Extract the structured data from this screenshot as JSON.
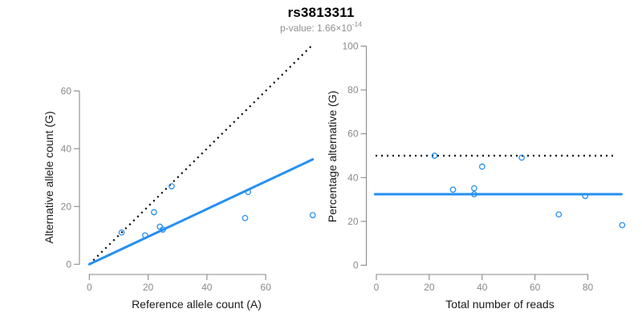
{
  "header": {
    "title": "rs3813311",
    "subtitle_prefix": "p-value: 1.66×10",
    "subtitle_exponent": "-14"
  },
  "colors": {
    "accent_blue": "#2590f2",
    "line_black": "#000000",
    "axis_gray": "#8a8a8a",
    "text_black": "#1a1a1a",
    "subtitle_gray": "#8f8f8f",
    "background": "#ffffff"
  },
  "chart_data": [
    {
      "type": "scatter",
      "panel": "left",
      "xlabel": "Reference allele count (A)",
      "ylabel": "Alternative allele count (G)",
      "x_ticks": [
        0,
        20,
        40,
        60
      ],
      "y_ticks": [
        0,
        20,
        40,
        60
      ],
      "xlim": [
        0,
        76
      ],
      "ylim": [
        0,
        77
      ],
      "grid": false,
      "legend": null,
      "marker": "open-circle",
      "point_color": "accent_blue",
      "points": [
        [
          11,
          11
        ],
        [
          19,
          10
        ],
        [
          22,
          18
        ],
        [
          24,
          13
        ],
        [
          25,
          12
        ],
        [
          28,
          27
        ],
        [
          53,
          16
        ],
        [
          54,
          25
        ],
        [
          76,
          17
        ]
      ],
      "lines": [
        {
          "name": "expected-het-line",
          "style": "dotted",
          "color": "line_black",
          "x1": 0,
          "y1": 0,
          "x2": 76,
          "y2": 76
        },
        {
          "name": "observed-fit-line",
          "style": "solid",
          "color": "accent_blue",
          "x1": 0,
          "y1": 0,
          "x2": 76,
          "y2": 36.3
        }
      ]
    },
    {
      "type": "scatter",
      "panel": "right",
      "xlabel": "Total number of reads",
      "ylabel": "Percentage alternative (G)",
      "x_ticks": [
        0,
        20,
        40,
        60,
        80
      ],
      "y_ticks": [
        0,
        20,
        40,
        60,
        80,
        100
      ],
      "xlim": [
        0,
        93
      ],
      "ylim": [
        0,
        100
      ],
      "grid": false,
      "legend": null,
      "marker": "open-circle",
      "point_color": "accent_blue",
      "points": [
        [
          22,
          50
        ],
        [
          29,
          34.5
        ],
        [
          37,
          35.1
        ],
        [
          37,
          32.4
        ],
        [
          40,
          45
        ],
        [
          55,
          49.1
        ],
        [
          69,
          23.2
        ],
        [
          79,
          31.6
        ],
        [
          93,
          18.3
        ]
      ],
      "lines": [
        {
          "name": "expected-50-percent-line",
          "style": "dotted",
          "color": "line_black",
          "x1": -0.3,
          "y1": 50,
          "x2": 90.8,
          "y2": 50
        },
        {
          "name": "observed-percentage-line",
          "style": "solid",
          "color": "accent_blue",
          "x1": -0.5,
          "y1": 32.4,
          "x2": 92.7,
          "y2": 32.4
        }
      ]
    }
  ]
}
